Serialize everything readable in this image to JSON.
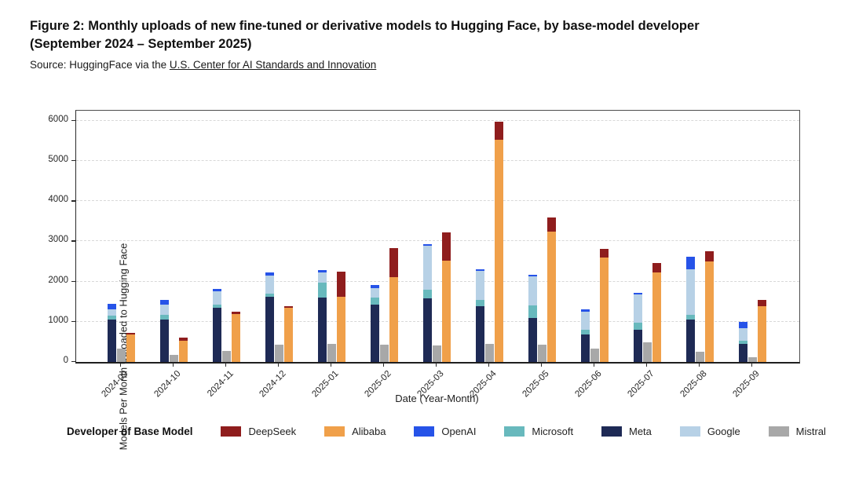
{
  "header": {
    "title_line1": "Figure 2: Monthly uploads of new fine-tuned or derivative models to Hugging Face, by base-model developer",
    "title_line2": "(September 2024 – September 2025)",
    "source_prefix": "Source: HuggingFace via the ",
    "source_link": "U.S. Center for AI Standards and Innovation"
  },
  "chart_data": {
    "type": "bar",
    "title": "",
    "xlabel": "Date (Year-Month)",
    "ylabel": "Models Per Month Uploaded to Hugging Face",
    "ylim": [
      0,
      6250
    ],
    "yticks": [
      0,
      1000,
      2000,
      3000,
      4000,
      5000,
      6000
    ],
    "grid": "horizontal-dashed",
    "legend_position": "bottom",
    "legend_title": "Developer of Base Model",
    "categories": [
      "2024-09",
      "2024-10",
      "2024-11",
      "2024-12",
      "2025-01",
      "2025-02",
      "2025-03",
      "2025-04",
      "2025-05",
      "2025-06",
      "2025-07",
      "2025-08",
      "2025-09"
    ],
    "bar_groups": [
      "us_stack",
      "mistral",
      "china_stack"
    ],
    "series": [
      {
        "name": "DeepSeek",
        "color": "#8f1d1d",
        "bar": "china_stack",
        "stack_order": 2,
        "values": [
          40,
          70,
          60,
          40,
          620,
          730,
          690,
          450,
          350,
          220,
          240,
          250,
          160
        ]
      },
      {
        "name": "Alibaba",
        "color": "#f0a04a",
        "bar": "china_stack",
        "stack_order": 1,
        "values": [
          680,
          530,
          1190,
          1350,
          1630,
          2110,
          2525,
          5530,
          3250,
          2590,
          2220,
          2500,
          1390
        ]
      },
      {
        "name": "OpenAI",
        "color": "#2653e8",
        "bar": "us_stack",
        "stack_order": 4,
        "values": [
          140,
          120,
          60,
          75,
          60,
          75,
          40,
          50,
          40,
          60,
          40,
          300,
          160
        ]
      },
      {
        "name": "Microsoft",
        "color": "#68b9bd",
        "bar": "us_stack",
        "stack_order": 2,
        "values": [
          100,
          120,
          80,
          80,
          370,
          175,
          215,
          160,
          310,
          120,
          180,
          120,
          80
        ]
      },
      {
        "name": "Meta",
        "color": "#1e2a55",
        "bar": "us_stack",
        "stack_order": 1,
        "values": [
          1050,
          1050,
          1350,
          1620,
          1600,
          1430,
          1580,
          1380,
          1100,
          680,
          800,
          1060,
          450
        ]
      },
      {
        "name": "Google",
        "color": "#b7d1e6",
        "bar": "us_stack",
        "stack_order": 3,
        "values": [
          150,
          250,
          330,
          450,
          250,
          230,
          1090,
          720,
          720,
          450,
          700,
          1130,
          310
        ]
      },
      {
        "name": "Mistral",
        "color": "#a8a8a8",
        "bar": "mistral",
        "stack_order": 1,
        "values": [
          330,
          185,
          270,
          430,
          450,
          430,
          410,
          450,
          430,
          330,
          490,
          260,
          110
        ]
      }
    ]
  }
}
